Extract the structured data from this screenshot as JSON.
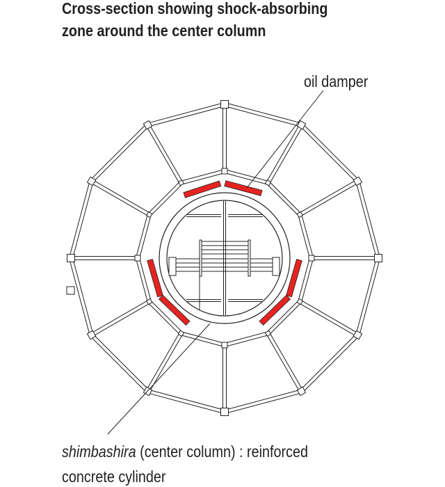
{
  "title": {
    "line1": "Cross-section showing shock-absorbing",
    "line2": "zone around the center column"
  },
  "labels": {
    "oil_damper": "oil damper",
    "caption_italic": "shimbashira",
    "caption_rest": " (center column) : reinforced",
    "caption_line2": "concrete cylinder"
  },
  "colors": {
    "damper": "#e52421",
    "line": "#231f20"
  }
}
